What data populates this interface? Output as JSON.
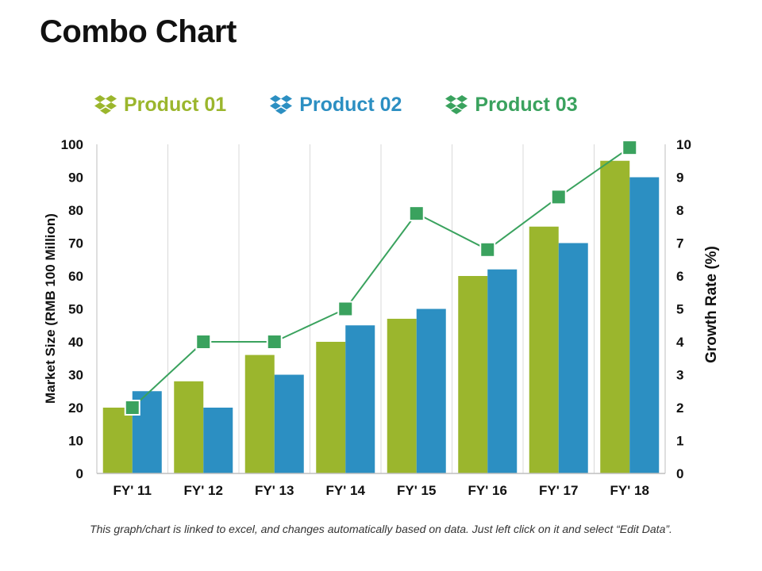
{
  "title": "Combo Chart",
  "footnote": "This graph/chart is linked to excel, and changes automatically based on data. Just left click on it and select “Edit Data”.",
  "legend": [
    {
      "label": "Product 01",
      "color": "#9bb62d",
      "icon": "dropbox-icon"
    },
    {
      "label": "Product 02",
      "color": "#2c8fc2",
      "icon": "dropbox-icon"
    },
    {
      "label": "Product 03",
      "color": "#3aa25e",
      "icon": "dropbox-icon"
    }
  ],
  "chart_data": {
    "type": "bar",
    "categories": [
      "FY' 11",
      "FY' 12",
      "FY' 13",
      "FY' 14",
      "FY' 15",
      "FY' 16",
      "FY' 17",
      "FY' 18"
    ],
    "series": [
      {
        "name": "Product 01",
        "type": "bar",
        "axis": "left",
        "color": "#9bb62d",
        "values": [
          20,
          28,
          36,
          40,
          47,
          60,
          75,
          95
        ]
      },
      {
        "name": "Product 02",
        "type": "bar",
        "axis": "left",
        "color": "#2c8fc2",
        "values": [
          25,
          20,
          30,
          45,
          50,
          62,
          70,
          90
        ]
      },
      {
        "name": "Product 03",
        "type": "line",
        "axis": "right",
        "color": "#3aa25e",
        "values": [
          2,
          4,
          4,
          5,
          7.9,
          6.8,
          8.4,
          9.9
        ]
      }
    ],
    "ylabel": "Market Size (RMB 100 Million)",
    "ylabel_right": "Growth  Rate (%)",
    "ylim": [
      0,
      100
    ],
    "ylim_right": [
      0,
      10
    ],
    "yticks": [
      "0",
      "10",
      "20",
      "30",
      "40",
      "50",
      "60",
      "70",
      "80",
      "90",
      "100"
    ],
    "yticks_right": [
      "0",
      "1",
      "2",
      "3",
      "4",
      "5",
      "6",
      "7",
      "8",
      "9",
      "10"
    ],
    "grid": "vertical",
    "legend_position": "top"
  }
}
